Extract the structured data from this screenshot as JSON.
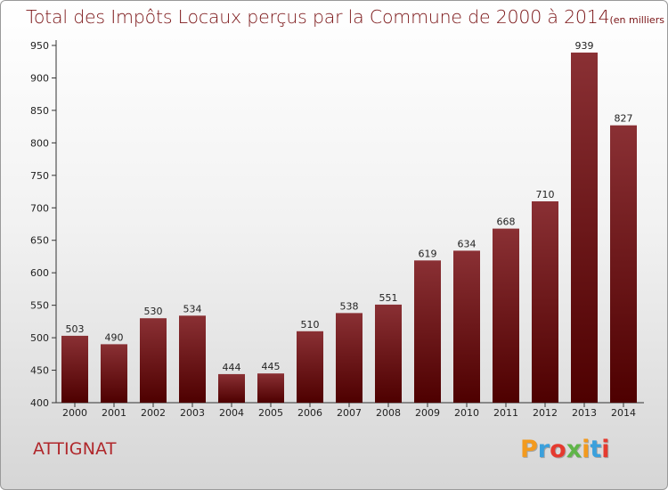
{
  "header": {
    "title": "Total des Impôts Locaux perçus par la Commune de 2000 à 2014",
    "unit": "(en milliers d'€)"
  },
  "footer": {
    "commune": "ATTIGNAT",
    "logo_letters": [
      "P",
      "r",
      "o",
      "x",
      "i",
      "t",
      "i"
    ],
    "logo_colors": [
      "#f39a1e",
      "#3aa0dc",
      "#e53a2f",
      "#5fb548",
      "#f39a1e",
      "#3aa0dc",
      "#e53a2f"
    ]
  },
  "colors": {
    "bar_top": "#8a3034",
    "bar_bottom": "#4e0000",
    "axis": "#333333",
    "grid": "#bbbbbb"
  },
  "chart_data": {
    "type": "bar",
    "title": "Total des Impôts Locaux perçus par la Commune de 2000 à 2014",
    "xlabel": "",
    "ylabel": "",
    "categories": [
      "2000",
      "2001",
      "2002",
      "2003",
      "2004",
      "2005",
      "2006",
      "2007",
      "2008",
      "2009",
      "2010",
      "2011",
      "2012",
      "2013",
      "2014"
    ],
    "values": [
      503,
      490,
      530,
      534,
      444,
      445,
      510,
      538,
      551,
      619,
      634,
      668,
      710,
      939,
      827
    ],
    "ylim": [
      400,
      950
    ],
    "yticks": [
      400,
      450,
      500,
      550,
      600,
      650,
      700,
      750,
      800,
      850,
      900,
      950
    ],
    "grid": false,
    "legend": "none"
  }
}
